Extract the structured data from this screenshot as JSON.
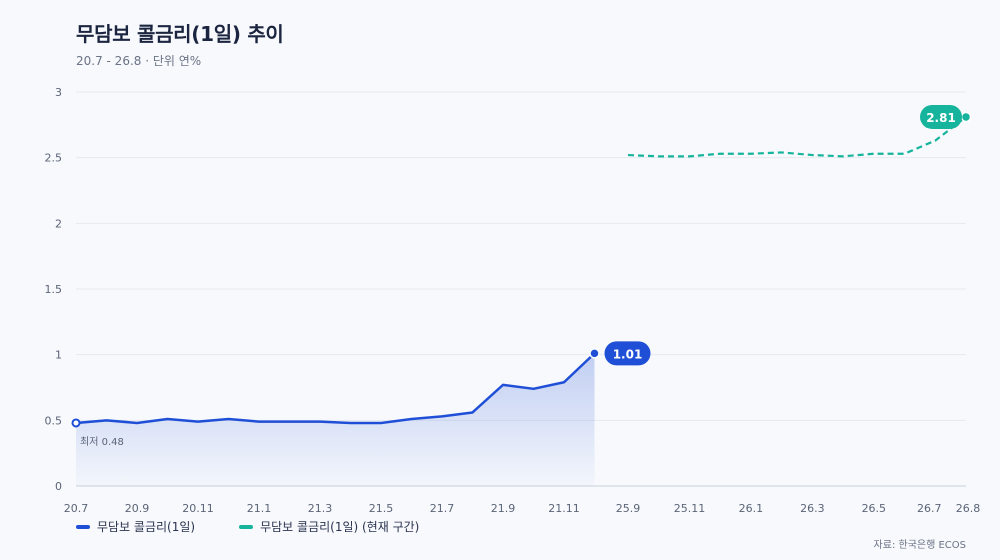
{
  "title": "무담보 콜금리(1일) 추이",
  "subtitle": "20.7 - 26.8 · 단위 연%",
  "source": "자료: 한국은행 ECOS",
  "colors": {
    "historical": "#1f4fd6",
    "current": "#16b49c",
    "grid": "#e6eaf1",
    "axis": "#c9cfda",
    "tick": "#5b6477"
  },
  "legend": [
    {
      "label": "무담보 콜금리(1일)",
      "color": "#1f4fd6"
    },
    {
      "label": "무담보 콜금리(1일) (현재 구간)",
      "color": "#16b49c"
    }
  ],
  "chart_data": {
    "type": "line",
    "ylim": [
      0,
      3
    ],
    "y_ticks": [
      "0",
      "0.5",
      "1",
      "1.5",
      "2",
      "2.5",
      "3"
    ],
    "x_ticks": [
      "20.7",
      "20.9",
      "20.11",
      "21.1",
      "21.3",
      "21.5",
      "21.7",
      "21.9",
      "21.11",
      "25.9",
      "25.11",
      "26.1",
      "26.3",
      "26.5",
      "26.7",
      "26.8"
    ],
    "grid": true,
    "legend_position": "bottom-left",
    "series": [
      {
        "name": "무담보 콜금리(1일)",
        "style": "solid-area",
        "x": [
          "20.7",
          "20.8",
          "20.9",
          "20.10",
          "20.11",
          "20.12",
          "21.1",
          "21.2",
          "21.3",
          "21.4",
          "21.5",
          "21.6",
          "21.7",
          "21.8",
          "21.9",
          "21.10",
          "21.11",
          "21.12"
        ],
        "values": [
          0.48,
          0.5,
          0.48,
          0.51,
          0.49,
          0.51,
          0.49,
          0.49,
          0.49,
          0.48,
          0.48,
          0.51,
          0.53,
          0.56,
          0.77,
          0.74,
          0.79,
          1.01
        ]
      },
      {
        "name": "무담보 콜금리(1일) (현재 구간)",
        "style": "dashed",
        "x": [
          "25.9",
          "25.10",
          "25.11",
          "25.12",
          "26.1",
          "26.2",
          "26.3",
          "26.4",
          "26.5",
          "26.6",
          "26.7",
          "26.8"
        ],
        "values": [
          2.52,
          2.51,
          2.51,
          2.53,
          2.53,
          2.54,
          2.52,
          2.51,
          2.53,
          2.53,
          2.63,
          2.81
        ]
      }
    ],
    "annotations": {
      "min_label": "최저 0.48",
      "end_label_historical": "1.01",
      "end_label_current": "2.81"
    }
  }
}
